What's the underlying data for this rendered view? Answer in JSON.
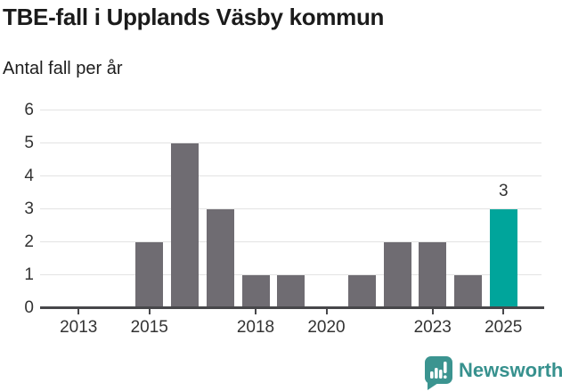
{
  "page": {
    "title": "TBE-fall i Upplands Väsby kommun",
    "subtitle": "Antal fall per år"
  },
  "chart_data": {
    "type": "bar",
    "title": "TBE-fall i Upplands Väsby kommun",
    "subtitle": "Antal fall per år",
    "ylabel": "Antal fall per år",
    "xlabel": "",
    "categories": [
      2012,
      2013,
      2014,
      2015,
      2016,
      2017,
      2018,
      2019,
      2020,
      2021,
      2022,
      2023,
      2024,
      2025
    ],
    "values": [
      0,
      0,
      0,
      2,
      5,
      3,
      1,
      1,
      0,
      1,
      2,
      2,
      1,
      3
    ],
    "ylim": [
      0,
      6
    ],
    "yticks": [
      0,
      1,
      2,
      3,
      4,
      5,
      6
    ],
    "xtick_labels": [
      "2013",
      "2015",
      "2018",
      "2020",
      "2023",
      "2025"
    ],
    "grid": "horizontal-only",
    "legend": "none",
    "highlight": {
      "category": 2025,
      "value": 3,
      "label": "3"
    },
    "colors": {
      "bar": "#6F6C72",
      "highlight": "#00A59B",
      "grid": "#E3E3E3",
      "axis": "#47474A",
      "tick_text": "#333333",
      "title_text": "#1B1B1B"
    }
  },
  "footer": {
    "brand": "Newsworthy",
    "logo_icon": "newsworthy-speech-bubble-bar-chart-icon",
    "logo_color": "#3B9490",
    "brand_color": "#37918E"
  }
}
